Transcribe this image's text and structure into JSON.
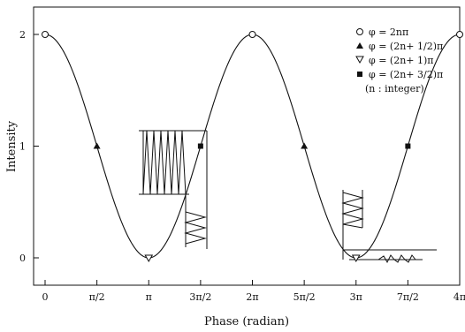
{
  "chart_data": {
    "type": "line",
    "xlabel": "Phase (radian)",
    "ylabel": "Intensity",
    "xlim": [
      0,
      12.566
    ],
    "ylim": [
      -0.25,
      2.2
    ],
    "x_ticks": [
      {
        "value": 0,
        "label": "0"
      },
      {
        "value": 1.5708,
        "label": "π/2"
      },
      {
        "value": 3.1416,
        "label": "π"
      },
      {
        "value": 4.7124,
        "label": "3π/2"
      },
      {
        "value": 6.2832,
        "label": "2π"
      },
      {
        "value": 7.854,
        "label": "5π/2"
      },
      {
        "value": 9.4248,
        "label": "3π"
      },
      {
        "value": 10.9956,
        "label": "7π/2"
      },
      {
        "value": 12.5664,
        "label": "4π"
      }
    ],
    "y_ticks": [
      {
        "value": 0,
        "label": "0"
      },
      {
        "value": 1,
        "label": "1"
      },
      {
        "value": 2,
        "label": "2"
      }
    ],
    "curve": {
      "formula": "1 + cos(x)",
      "x_range": [
        0,
        12.5664
      ]
    },
    "series": [
      {
        "name": "φ = 2nπ",
        "marker": "circle-open",
        "x": [
          0,
          6.2832,
          12.5664
        ],
        "y": [
          2,
          2,
          2
        ]
      },
      {
        "name": "φ = (2n+ 1/2)π",
        "marker": "triangle-up-filled",
        "x": [
          1.5708,
          7.854
        ],
        "y": [
          1,
          1
        ]
      },
      {
        "name": "φ = (2n+ 1)π",
        "marker": "triangle-down-open",
        "x": [
          3.1416,
          9.4248
        ],
        "y": [
          0,
          0
        ]
      },
      {
        "name": "φ = (2n+ 3/2)π",
        "marker": "square-filled",
        "x": [
          4.7124,
          10.9956
        ],
        "y": [
          1,
          1
        ]
      }
    ],
    "legend_note": "(n : integer)",
    "legend_position": "top-right",
    "grid": false
  }
}
